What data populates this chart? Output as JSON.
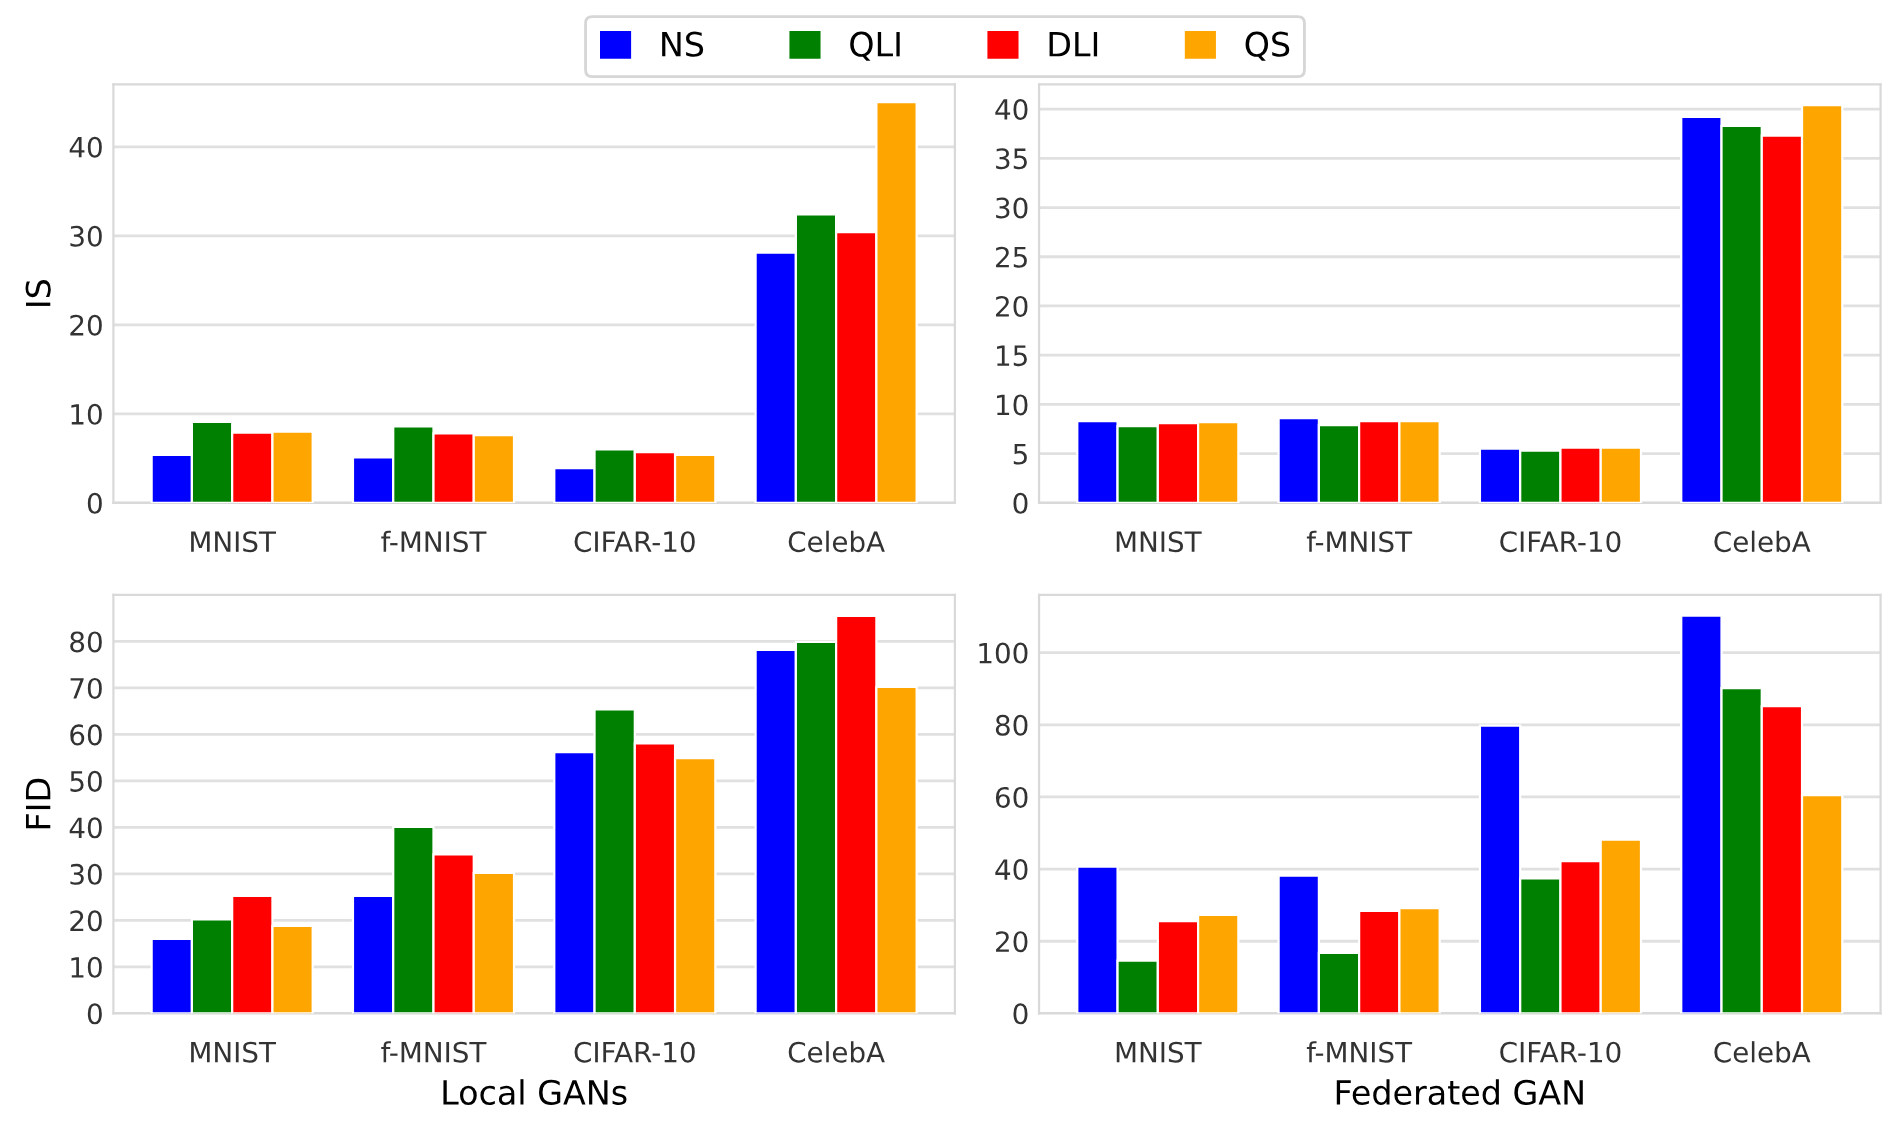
{
  "chart_data": [
    {
      "type": "bar",
      "categories": [
        "MNIST",
        "f-MNIST",
        "CIFAR-10",
        "CelebA"
      ],
      "ylabel": "IS",
      "ylim": [
        0,
        47
      ],
      "yticks": [
        0,
        10,
        20,
        30,
        40
      ],
      "grid": "y",
      "legend": "top",
      "series": [
        {
          "name": "NS",
          "color": "#0000ff",
          "values": [
            5.4,
            5.1,
            3.9,
            28.1
          ]
        },
        {
          "name": "QLI",
          "color": "#008000",
          "values": [
            9.1,
            8.6,
            6.0,
            32.4
          ]
        },
        {
          "name": "DLI",
          "color": "#ff0000",
          "values": [
            7.9,
            7.8,
            5.7,
            30.4
          ]
        },
        {
          "name": "QS",
          "color": "#ffa500",
          "values": [
            8.0,
            7.6,
            5.4,
            45.0
          ]
        }
      ]
    },
    {
      "type": "bar",
      "categories": [
        "MNIST",
        "f-MNIST",
        "CIFAR-10",
        "CelebA"
      ],
      "ylim": [
        0,
        42.5
      ],
      "yticks": [
        0,
        5,
        10,
        15,
        20,
        25,
        30,
        35,
        40
      ],
      "grid": "y",
      "series": [
        {
          "color": "#0000ff",
          "values": [
            8.3,
            8.6,
            5.5,
            39.2
          ]
        },
        {
          "color": "#008000",
          "values": [
            7.8,
            7.9,
            5.3,
            38.3
          ]
        },
        {
          "color": "#ff0000",
          "values": [
            8.1,
            8.3,
            5.6,
            37.3
          ]
        },
        {
          "color": "#ffa500",
          "values": [
            8.2,
            8.3,
            5.6,
            40.4
          ]
        }
      ]
    },
    {
      "type": "bar",
      "categories": [
        "MNIST",
        "f-MNIST",
        "CIFAR-10",
        "CelebA"
      ],
      "ylabel": "FID",
      "xlabel": "Local GANs",
      "ylim": [
        0,
        90
      ],
      "yticks": [
        0,
        10,
        20,
        30,
        40,
        50,
        60,
        70,
        80
      ],
      "grid": "y",
      "series": [
        {
          "color": "#0000ff",
          "values": [
            16.0,
            25.3,
            56.2,
            78.2
          ]
        },
        {
          "color": "#008000",
          "values": [
            20.2,
            40.1,
            65.4,
            79.9
          ]
        },
        {
          "color": "#ff0000",
          "values": [
            25.3,
            34.2,
            58.1,
            85.5
          ]
        },
        {
          "color": "#ffa500",
          "values": [
            18.8,
            30.2,
            54.9,
            70.2
          ]
        }
      ]
    },
    {
      "type": "bar",
      "categories": [
        "MNIST",
        "f-MNIST",
        "CIFAR-10",
        "CelebA"
      ],
      "xlabel": "Federated GAN",
      "ylim": [
        0,
        116
      ],
      "yticks": [
        0,
        20,
        40,
        60,
        80,
        100
      ],
      "grid": "y",
      "series": [
        {
          "color": "#0000ff",
          "values": [
            40.7,
            38.2,
            79.8,
            110.3
          ]
        },
        {
          "color": "#008000",
          "values": [
            14.6,
            16.8,
            37.4,
            90.2
          ]
        },
        {
          "color": "#ff0000",
          "values": [
            25.6,
            28.4,
            42.2,
            85.2
          ]
        },
        {
          "color": "#ffa500",
          "values": [
            27.3,
            29.2,
            48.2,
            60.5
          ]
        }
      ]
    }
  ]
}
